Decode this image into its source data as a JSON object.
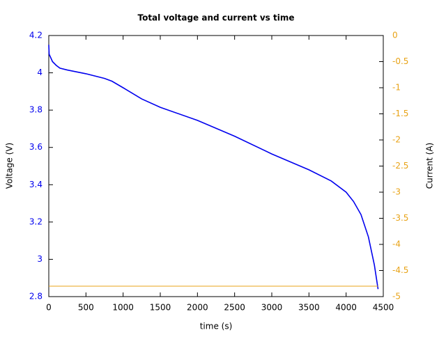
{
  "chart_data": {
    "type": "line",
    "title": "Total voltage and current vs time",
    "x_label": "time (s)",
    "y_label": "Voltage (V)",
    "y2_label": "Current (A)",
    "x": [
      0,
      5,
      50,
      100,
      150,
      250,
      500,
      750,
      850,
      1000,
      1250,
      1500,
      2000,
      2500,
      3000,
      3500,
      3800,
      4000,
      4100,
      4200,
      4300,
      4380,
      4430
    ],
    "series": [
      {
        "name": "Voltage",
        "color": "#0000ee",
        "axis": "y",
        "values": [
          4.15,
          4.1,
          4.06,
          4.04,
          4.025,
          4.015,
          3.995,
          3.97,
          3.955,
          3.92,
          3.86,
          3.815,
          3.745,
          3.66,
          3.565,
          3.48,
          3.42,
          3.36,
          3.31,
          3.24,
          3.12,
          2.97,
          2.84
        ]
      },
      {
        "name": "Current",
        "color": "#e8a317",
        "axis": "y2",
        "values": [
          -4.8,
          -4.8,
          -4.8,
          -4.8,
          -4.8,
          -4.8,
          -4.8,
          -4.8,
          -4.8,
          -4.8,
          -4.8,
          -4.8,
          -4.8,
          -4.8,
          -4.8,
          -4.8,
          -4.8,
          -4.8,
          -4.8,
          -4.8,
          -4.8,
          -4.8,
          -4.8
        ]
      }
    ],
    "xlim": [
      0,
      4500
    ],
    "xticks": [
      0,
      500,
      1000,
      1500,
      2000,
      2500,
      3000,
      3500,
      4000,
      4500
    ],
    "ylim": [
      2.8,
      4.2
    ],
    "yticks": [
      2.8,
      3,
      3.2,
      3.4,
      3.6,
      3.8,
      4,
      4.2
    ],
    "y2lim": [
      -5,
      0
    ],
    "y2ticks": [
      -5,
      -4.5,
      -4,
      -3.5,
      -3,
      -2.5,
      -2,
      -1.5,
      -1,
      -0.5,
      0
    ],
    "grid": false
  }
}
